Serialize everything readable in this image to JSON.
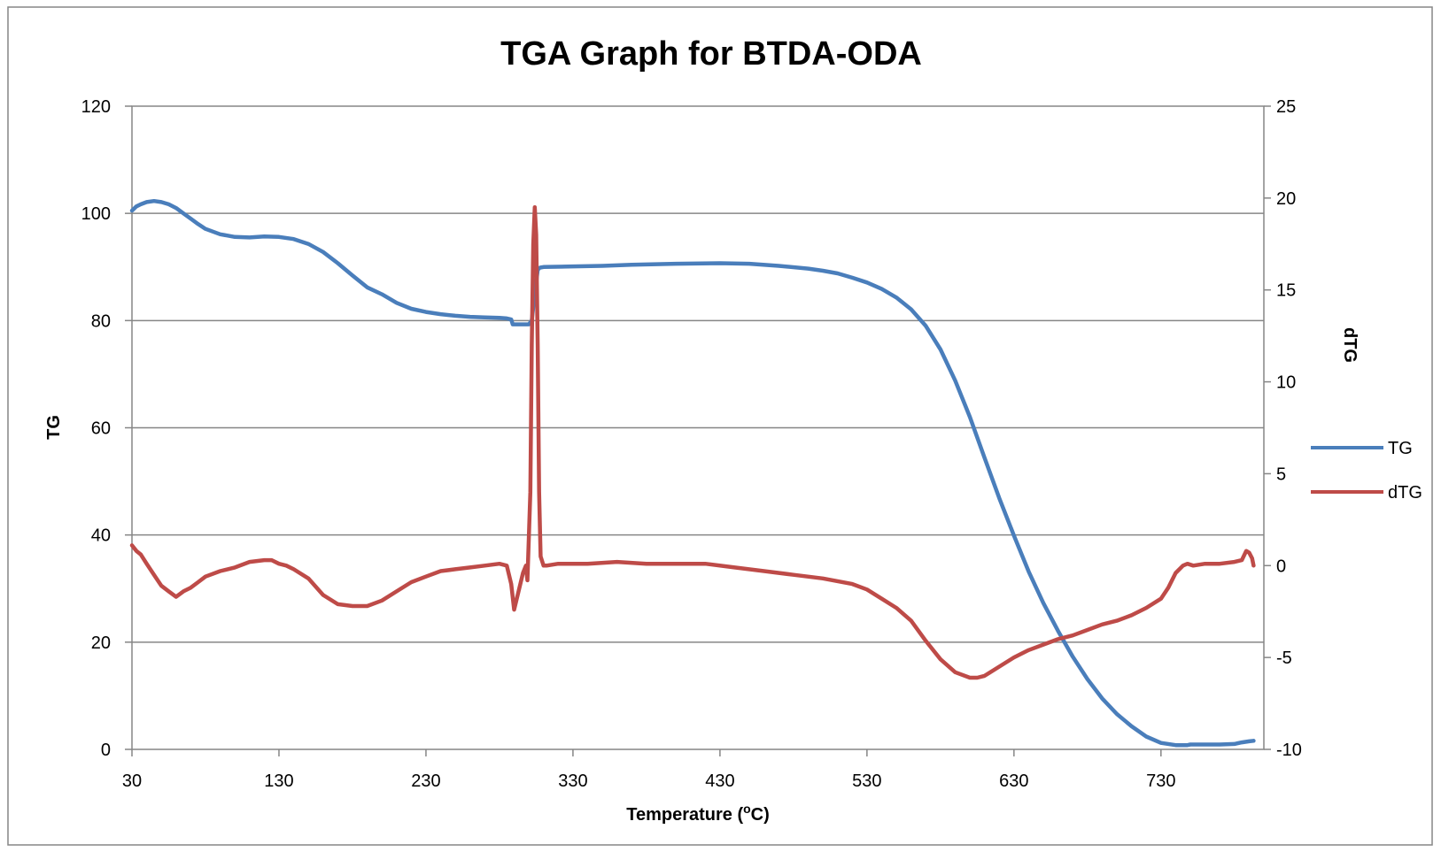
{
  "chart_data": {
    "type": "line",
    "title": "TGA Graph for BTDA-ODA",
    "xlabel": "Temperature (",
    "xlabel_sup": "o",
    "xlabel_suffix": "C)",
    "ylabel": "TG",
    "y2label": "dTG",
    "xlim": [
      30,
      800
    ],
    "ylim": [
      0,
      120
    ],
    "y2lim": [
      -10,
      25
    ],
    "x_ticks": [
      30,
      130,
      230,
      330,
      430,
      530,
      630,
      730
    ],
    "y_ticks": [
      0,
      20,
      40,
      60,
      80,
      100,
      120
    ],
    "y2_ticks": [
      -10,
      -5,
      0,
      5,
      10,
      15,
      20,
      25
    ],
    "grid": "horizontal",
    "legend_position": "right",
    "series": [
      {
        "name": "TG",
        "axis": "left",
        "color": "#4a7ebb",
        "x": [
          30,
          33,
          36,
          40,
          45,
          50,
          55,
          60,
          65,
          70,
          75,
          80,
          90,
          100,
          110,
          120,
          130,
          140,
          150,
          160,
          170,
          180,
          190,
          200,
          210,
          220,
          230,
          240,
          250,
          260,
          270,
          280,
          285,
          288,
          289,
          290,
          295,
          300,
          302,
          304,
          306,
          307,
          308,
          310,
          330,
          350,
          370,
          400,
          430,
          450,
          470,
          490,
          500,
          510,
          520,
          530,
          540,
          550,
          560,
          570,
          580,
          590,
          600,
          610,
          620,
          630,
          640,
          650,
          660,
          670,
          680,
          690,
          700,
          710,
          720,
          730,
          740,
          748,
          750,
          752,
          760,
          770,
          780,
          785,
          790,
          793
        ],
        "y": [
          100.5,
          101.3,
          101.7,
          102.1,
          102.3,
          102.1,
          101.7,
          101.0,
          100.0,
          99.0,
          98.0,
          97.1,
          96.1,
          95.6,
          95.5,
          95.7,
          95.6,
          95.2,
          94.3,
          92.8,
          90.7,
          88.4,
          86.2,
          84.9,
          83.3,
          82.2,
          81.6,
          81.2,
          80.9,
          80.7,
          80.6,
          80.5,
          80.4,
          80.2,
          79.3,
          79.3,
          79.3,
          79.3,
          80.0,
          85.0,
          89.4,
          89.8,
          89.9,
          90.0,
          90.1,
          90.2,
          90.4,
          90.6,
          90.7,
          90.6,
          90.2,
          89.7,
          89.3,
          88.8,
          88.0,
          87.1,
          85.9,
          84.3,
          82.1,
          79.0,
          74.6,
          68.8,
          62.0,
          54.4,
          46.9,
          39.9,
          33.2,
          27.3,
          22.1,
          17.3,
          13.1,
          9.5,
          6.6,
          4.3,
          2.4,
          1.2,
          0.8,
          0.8,
          0.9,
          0.9,
          0.9,
          0.9,
          1.0,
          1.3,
          1.5,
          1.6
        ]
      },
      {
        "name": "dTG",
        "axis": "right",
        "color": "#be4b48",
        "x": [
          30,
          33,
          36,
          40,
          45,
          50,
          55,
          60,
          65,
          70,
          75,
          80,
          90,
          100,
          110,
          120,
          125,
          130,
          135,
          140,
          150,
          160,
          170,
          180,
          190,
          200,
          210,
          220,
          230,
          240,
          250,
          260,
          270,
          280,
          285,
          288,
          290,
          293,
          296,
          298,
          299,
          301,
          302,
          303,
          304,
          305,
          306,
          307,
          308,
          310,
          312,
          320,
          340,
          360,
          380,
          400,
          420,
          440,
          460,
          480,
          500,
          520,
          530,
          540,
          550,
          560,
          570,
          580,
          590,
          600,
          605,
          610,
          620,
          630,
          640,
          650,
          660,
          670,
          680,
          690,
          700,
          710,
          720,
          730,
          735,
          740,
          745,
          748,
          752,
          760,
          770,
          780,
          785,
          788,
          790,
          792,
          793
        ],
        "y": [
          1.1,
          0.8,
          0.6,
          0.1,
          -0.5,
          -1.1,
          -1.4,
          -1.7,
          -1.4,
          -1.2,
          -0.9,
          -0.6,
          -0.3,
          -0.1,
          0.2,
          0.3,
          0.3,
          0.1,
          0.0,
          -0.2,
          -0.7,
          -1.6,
          -2.1,
          -2.2,
          -2.2,
          -1.9,
          -1.4,
          -0.9,
          -0.6,
          -0.3,
          -0.2,
          -0.1,
          0.0,
          0.1,
          0.0,
          -1.0,
          -2.4,
          -1.4,
          -0.4,
          0.0,
          -0.8,
          4.0,
          12.0,
          17.5,
          19.5,
          18.0,
          12.0,
          4.0,
          0.5,
          0.0,
          0.0,
          0.1,
          0.1,
          0.2,
          0.1,
          0.1,
          0.1,
          -0.1,
          -0.3,
          -0.5,
          -0.7,
          -1.0,
          -1.3,
          -1.8,
          -2.3,
          -3.0,
          -4.1,
          -5.1,
          -5.8,
          -6.1,
          -6.1,
          -6.0,
          -5.5,
          -5.0,
          -4.6,
          -4.3,
          -4.0,
          -3.8,
          -3.5,
          -3.2,
          -3.0,
          -2.7,
          -2.3,
          -1.8,
          -1.2,
          -0.4,
          0.0,
          0.1,
          0.0,
          0.1,
          0.1,
          0.2,
          0.3,
          0.8,
          0.7,
          0.4,
          0.0
        ]
      }
    ]
  }
}
